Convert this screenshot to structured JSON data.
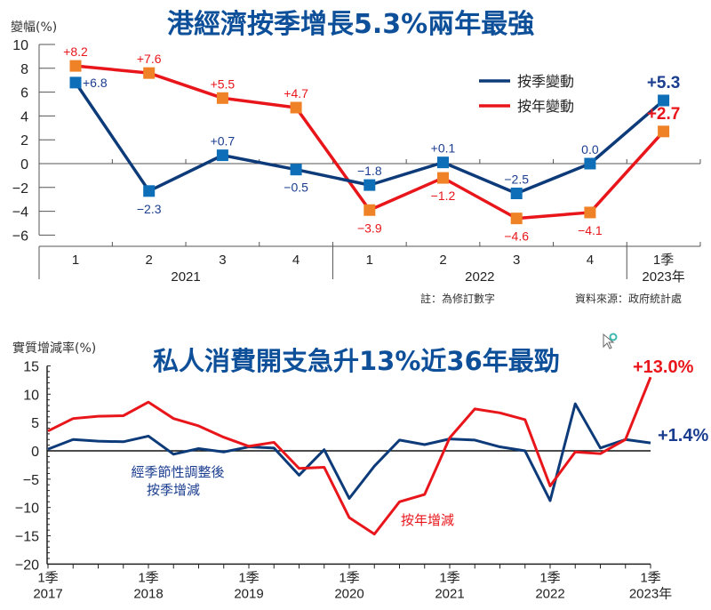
{
  "colors": {
    "qoq_line": "#0d3b7a",
    "yoy_line": "#e8161b",
    "qoq_marker": "#0e6fb8",
    "yoy_marker": "#ef8226",
    "qoq_label": "#1a3d8f",
    "yoy_label": "#e8161b",
    "title": "#0d4f99",
    "axis": "#555555"
  },
  "chart_data": [
    {
      "type": "line",
      "title": "港經濟按季增長5.3%兩年最強",
      "ylabel": "變幅(%)",
      "xlabel": "",
      "ylim": [
        -6,
        10
      ],
      "yticks": [
        10,
        8,
        6,
        4,
        2,
        0,
        -2,
        -4,
        -6
      ],
      "grid": false,
      "legend_position": "top-right",
      "categories": [
        "1",
        "2",
        "3",
        "4",
        "1",
        "2",
        "3",
        "4",
        "1季"
      ],
      "year_groups": [
        {
          "label": "2021",
          "start": 0,
          "end": 3
        },
        {
          "label": "2022",
          "start": 4,
          "end": 7
        },
        {
          "label": "2023年",
          "start": 8,
          "end": 8
        }
      ],
      "series": [
        {
          "name": "按季變動",
          "values": [
            6.8,
            -2.3,
            0.7,
            -0.5,
            -1.8,
            0.1,
            -2.5,
            0.0,
            5.3
          ],
          "labels": [
            "+6.8",
            "−2.3",
            "+0.7",
            "−0.5",
            "−1.8",
            "+0.1",
            "−2.5",
            "0.0",
            "+5.3"
          ]
        },
        {
          "name": "按年變動",
          "values": [
            8.2,
            7.6,
            5.5,
            4.7,
            -3.9,
            -1.2,
            -4.6,
            -4.1,
            2.7
          ],
          "labels": [
            "+8.2",
            "+7.6",
            "+5.5",
            "+4.7",
            "−3.9",
            "−1.2",
            "−4.6",
            "−4.1",
            "+2.7"
          ]
        }
      ],
      "notes": {
        "revised": "註：為修訂數字",
        "source": "資料來源：政府統計處"
      }
    },
    {
      "type": "line",
      "title": "私人消費開支急升13%近36年最勁",
      "ylabel": "實質增減率(%)",
      "xlabel": "",
      "ylim": [
        -20,
        15
      ],
      "yticks": [
        15,
        10,
        5,
        0,
        -5,
        -10,
        -15,
        -20
      ],
      "grid": false,
      "x": [
        "2017Q1",
        "2017Q2",
        "2017Q3",
        "2017Q4",
        "2018Q1",
        "2018Q2",
        "2018Q3",
        "2018Q4",
        "2019Q1",
        "2019Q2",
        "2019Q3",
        "2019Q4",
        "2020Q1",
        "2020Q2",
        "2020Q3",
        "2020Q4",
        "2021Q1",
        "2021Q2",
        "2021Q3",
        "2021Q4",
        "2022Q1",
        "2022Q2",
        "2022Q3",
        "2022Q4",
        "2023Q1"
      ],
      "xtick_labels": [
        {
          "line1": "1季",
          "line2": "2017"
        },
        {
          "line1": "1季",
          "line2": "2018"
        },
        {
          "line1": "1季",
          "line2": "2019"
        },
        {
          "line1": "1季",
          "line2": "2020"
        },
        {
          "line1": "1季",
          "line2": "2021"
        },
        {
          "line1": "1季",
          "line2": "2022"
        },
        {
          "line1": "1季",
          "line2": "2023年"
        }
      ],
      "series": [
        {
          "name": "經季節性調整後按季增減",
          "values": [
            0.3,
            2.0,
            1.7,
            1.6,
            2.6,
            -0.6,
            0.4,
            -0.2,
            0.7,
            0.5,
            -4.3,
            0.2,
            -8.4,
            -2.7,
            1.9,
            1.1,
            2.1,
            1.9,
            0.7,
            0.0,
            -8.8,
            8.3,
            0.5,
            2.0,
            1.4
          ],
          "end_label": "+1.4%"
        },
        {
          "name": "按年增減",
          "values": [
            3.5,
            5.7,
            6.1,
            6.2,
            8.6,
            5.7,
            4.4,
            2.4,
            0.8,
            1.5,
            -3.1,
            -2.9,
            -11.8,
            -14.7,
            -9.0,
            -7.7,
            2.3,
            7.4,
            6.7,
            5.5,
            -6.2,
            -0.2,
            -0.5,
            2.0,
            13.0
          ],
          "end_label": "+13.0%"
        }
      ],
      "annotations": {
        "qoq_line1": "經季節性調整後",
        "qoq_line2": "按季增減",
        "yoy": "按年增減"
      }
    }
  ]
}
